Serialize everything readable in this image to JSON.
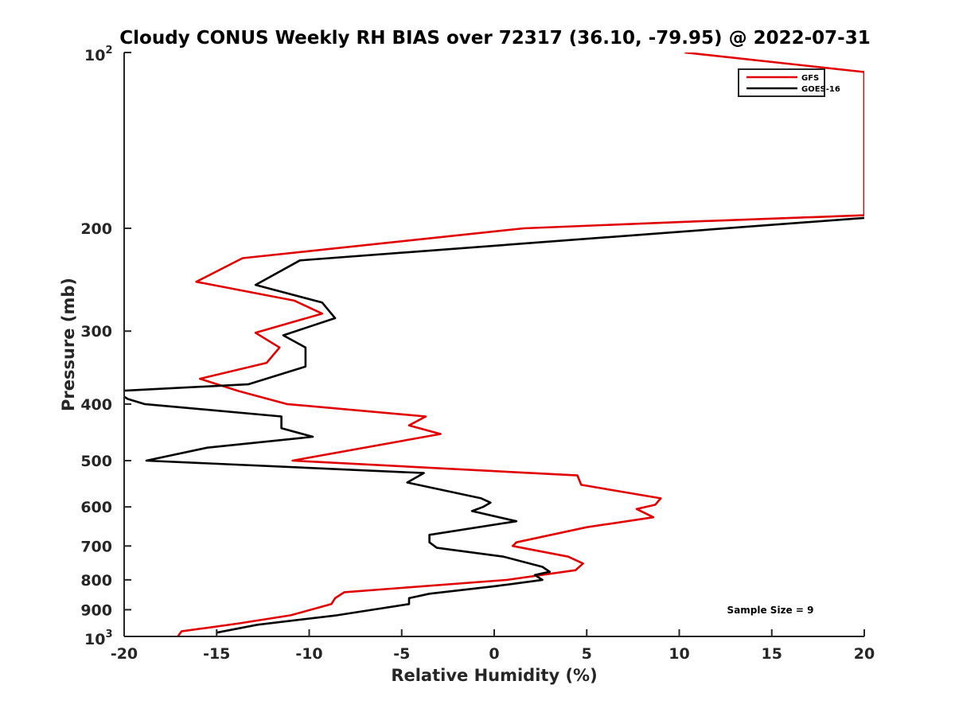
{
  "chart_data": {
    "type": "line",
    "title": "Cloudy CONUS Weekly RH BIAS over 72317 (36.10, -79.95) @ 2022-07-31",
    "xlabel": "Relative Humidity (%)",
    "ylabel": "Pressure (mb)",
    "xlim": [
      -20,
      20
    ],
    "ylim": [
      100,
      1000
    ],
    "y_scale": "log",
    "y_reversed": true,
    "grid": false,
    "legend_position": "top-right",
    "x_ticks": [
      "-20",
      "-15",
      "-10",
      "-5",
      "0",
      "5",
      "10",
      "15",
      "20"
    ],
    "y_ticks": [
      {
        "value": 100,
        "label": "10",
        "sup": "2"
      },
      {
        "value": 200,
        "label": "200",
        "sup": ""
      },
      {
        "value": 300,
        "label": "300",
        "sup": ""
      },
      {
        "value": 400,
        "label": "400",
        "sup": ""
      },
      {
        "value": 500,
        "label": "500",
        "sup": ""
      },
      {
        "value": 600,
        "label": "600",
        "sup": ""
      },
      {
        "value": 700,
        "label": "700",
        "sup": ""
      },
      {
        "value": 800,
        "label": "800",
        "sup": ""
      },
      {
        "value": 900,
        "label": "900",
        "sup": ""
      },
      {
        "value": 1000,
        "label": "10",
        "sup": "3"
      }
    ],
    "annotation": "Sample Size = 9",
    "series": [
      {
        "name": "GFS",
        "color": "#e00000",
        "points": [
          [
            10.3,
            100
          ],
          [
            20,
            108
          ],
          [
            20,
            190
          ],
          [
            10.2,
            195
          ],
          [
            1.6,
            200
          ],
          [
            -13.6,
            225
          ],
          [
            -16.1,
            247
          ],
          [
            -10.8,
            266
          ],
          [
            -9.3,
            280
          ],
          [
            -12.9,
            302
          ],
          [
            -11.6,
            320
          ],
          [
            -12.3,
            340
          ],
          [
            -15.9,
            362
          ],
          [
            -13.8,
            380
          ],
          [
            -11.2,
            400
          ],
          [
            -3.7,
            420
          ],
          [
            -4.6,
            435
          ],
          [
            -2.9,
            450
          ],
          [
            -10.9,
            500
          ],
          [
            4.5,
            530
          ],
          [
            4.7,
            550
          ],
          [
            9.0,
            580
          ],
          [
            8.7,
            595
          ],
          [
            7.7,
            605
          ],
          [
            8.6,
            625
          ],
          [
            5.0,
            650
          ],
          [
            1.2,
            690
          ],
          [
            1.0,
            700
          ],
          [
            4.0,
            730
          ],
          [
            4.8,
            750
          ],
          [
            4.4,
            770
          ],
          [
            0.7,
            800
          ],
          [
            -8.1,
            840
          ],
          [
            -8.6,
            860
          ],
          [
            -8.8,
            880
          ],
          [
            -11.0,
            920
          ],
          [
            -13.8,
            950
          ],
          [
            -16.9,
            980
          ],
          [
            -17.1,
            1000
          ]
        ]
      },
      {
        "name": "GOES-16",
        "color": "#000000",
        "points": [
          [
            20,
            192
          ],
          [
            -10.5,
            227
          ],
          [
            -12.9,
            250
          ],
          [
            -9.3,
            268
          ],
          [
            -8.6,
            285
          ],
          [
            -11.4,
            305
          ],
          [
            -10.2,
            320
          ],
          [
            -10.2,
            345
          ],
          [
            -13.3,
            370
          ],
          [
            -20.5,
            380
          ],
          [
            -19.8,
            392
          ],
          [
            -18.9,
            400
          ],
          [
            -11.5,
            420
          ],
          [
            -11.5,
            440
          ],
          [
            -9.8,
            455
          ],
          [
            -15.5,
            475
          ],
          [
            -18.8,
            500
          ],
          [
            -3.8,
            525
          ],
          [
            -4.7,
            545
          ],
          [
            -0.7,
            580
          ],
          [
            -0.2,
            590
          ],
          [
            -0.6,
            600
          ],
          [
            -1.2,
            610
          ],
          [
            1.2,
            635
          ],
          [
            -3.5,
            670
          ],
          [
            -3.5,
            690
          ],
          [
            -3.1,
            705
          ],
          [
            0.5,
            730
          ],
          [
            2.6,
            760
          ],
          [
            3.0,
            775
          ],
          [
            2.2,
            785
          ],
          [
            2.6,
            800
          ],
          [
            0.1,
            820
          ],
          [
            -3.5,
            845
          ],
          [
            -4.6,
            860
          ],
          [
            -4.6,
            880
          ],
          [
            -8.5,
            920
          ],
          [
            -12.8,
            955
          ],
          [
            -15.0,
            985
          ]
        ]
      }
    ]
  }
}
